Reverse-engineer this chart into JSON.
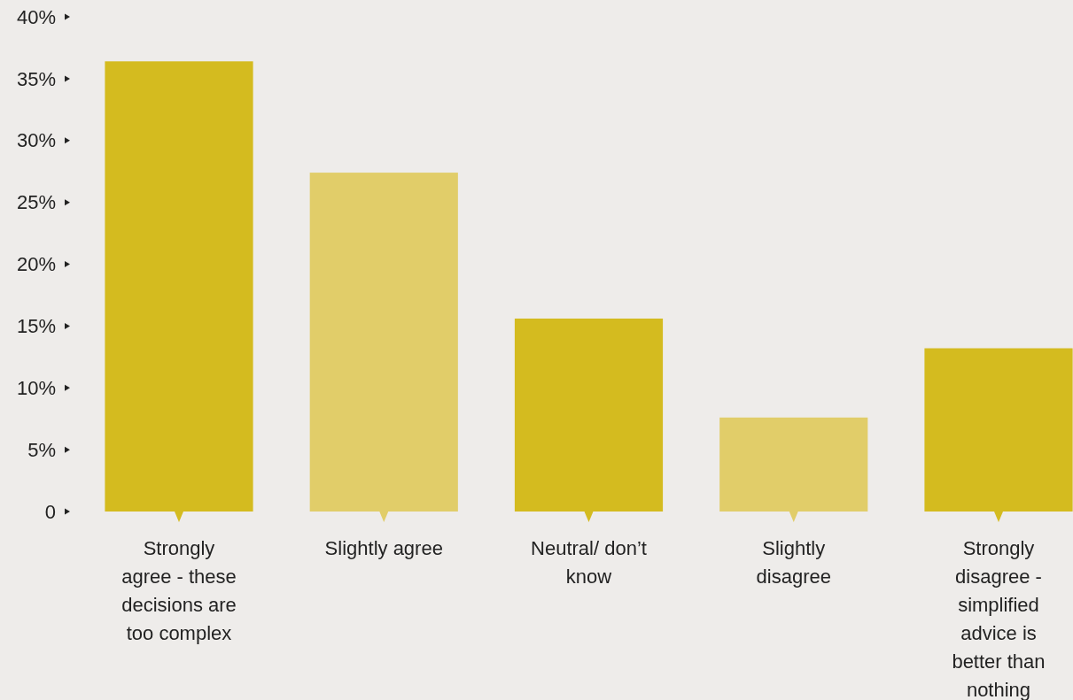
{
  "chart_data": {
    "type": "bar",
    "categories": [
      "Strongly agree - these decisions are too complex",
      "Slightly agree",
      "Neutral/ don’t know",
      "Slightly disagree",
      "Strongly disagree - simplified advice is better than nothing"
    ],
    "values": [
      36.4,
      27.4,
      15.6,
      7.6,
      13.2
    ],
    "colors": [
      "#d4bb1f",
      "#e1cd69",
      "#d4bb1f",
      "#e1cd69",
      "#d4bb1f"
    ],
    "ylim": [
      0,
      40
    ],
    "yticks": [
      {
        "value": 0,
        "label": "0"
      },
      {
        "value": 5,
        "label": "5%"
      },
      {
        "value": 10,
        "label": "10%"
      },
      {
        "value": 15,
        "label": "15%"
      },
      {
        "value": 20,
        "label": "20%"
      },
      {
        "value": 25,
        "label": "25%"
      },
      {
        "value": 30,
        "label": "30%"
      },
      {
        "value": 35,
        "label": "35%"
      },
      {
        "value": 40,
        "label": "40%"
      }
    ],
    "grid": false
  }
}
